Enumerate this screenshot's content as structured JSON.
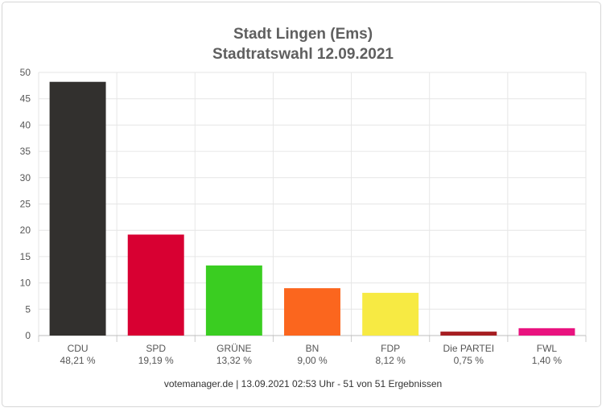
{
  "chart_data": {
    "type": "bar",
    "title": "Stadt Lingen (Ems)",
    "subtitle": "Stadtratswahl 12.09.2021",
    "categories": [
      "CDU",
      "SPD",
      "GRÜNE",
      "BN",
      "FDP",
      "Die PARTEI",
      "FWL"
    ],
    "values": [
      48.21,
      19.19,
      13.32,
      9.0,
      8.12,
      0.75,
      1.4
    ],
    "value_labels": [
      "48,21 %",
      "19,19 %",
      "13,32 %",
      "9,00 %",
      "8,12 %",
      "0,75 %",
      "1,40 %"
    ],
    "colors": [
      "#32302e",
      "#d80032",
      "#3acd21",
      "#fb661e",
      "#f7ea43",
      "#a61e22",
      "#e9137f"
    ],
    "yticks": [
      0,
      5,
      10,
      15,
      20,
      25,
      30,
      35,
      40,
      45,
      50
    ],
    "ylim": [
      0,
      50
    ],
    "grid": true,
    "legend": "none"
  },
  "footer": "votemanager.de | 13.09.2021 02:53 Uhr - 51 von 51 Ergebnissen"
}
